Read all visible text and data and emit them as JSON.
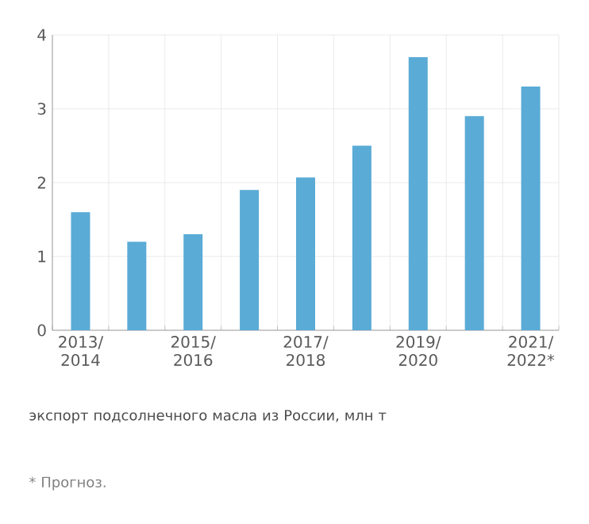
{
  "chart_data": {
    "type": "bar",
    "categories": [
      "2013/ 2014",
      null,
      "2015/ 2016",
      null,
      "2017/ 2018",
      null,
      "2019/ 2020",
      null,
      "2021/ 2022*"
    ],
    "values": [
      1.6,
      1.2,
      1.3,
      1.9,
      2.07,
      2.5,
      3.7,
      2.9,
      3.3
    ],
    "color": "#5aabd6",
    "ylim": [
      0,
      4
    ],
    "yticks": [
      0,
      1,
      2,
      3,
      4
    ],
    "grid": true,
    "annotations": [
      "экспорт подсолнечного масла из России, млн т",
      "* Прогноз."
    ]
  }
}
